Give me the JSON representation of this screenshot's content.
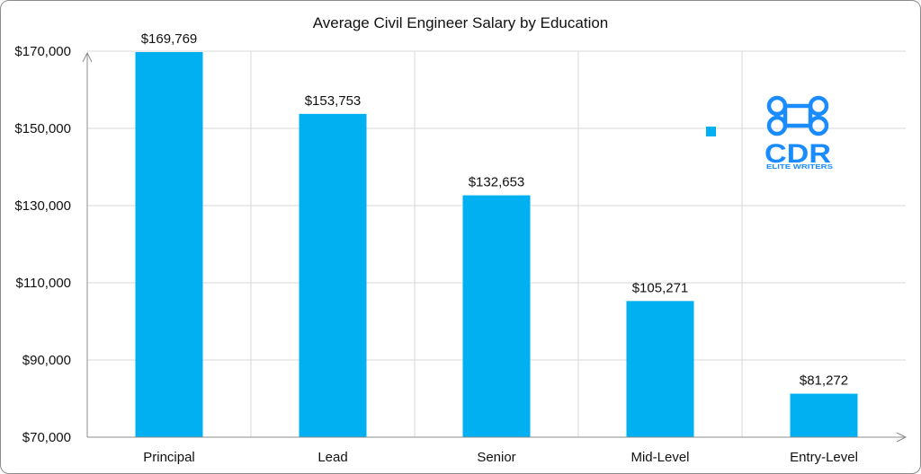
{
  "chart_data": {
    "type": "bar",
    "title": "Average Civil Engineer Salary by Education",
    "xlabel": "",
    "ylabel": "",
    "categories": [
      "Principal",
      "Lead",
      "Senior",
      "Mid-Level",
      "Entry-Level"
    ],
    "values": [
      169769,
      153753,
      132653,
      105271,
      81272
    ],
    "data_labels": [
      "$169,769",
      "$153,753",
      "$132,653",
      "$105,271",
      "$81,272"
    ],
    "ylim": [
      70000,
      170000
    ],
    "yticks": [
      70000,
      90000,
      110000,
      130000,
      150000,
      170000
    ],
    "ytick_labels": [
      "$70,000",
      "$90,000",
      "$110,000",
      "$130,000",
      "$150,000",
      "$170,000"
    ],
    "grid": true,
    "legend": "none",
    "bar_color": "#00b0f0",
    "grid_color": "#d9d9d9",
    "axis_color": "#8c8c8c"
  },
  "watermark": {
    "brand": "CDR",
    "tagline": "ELITE WRITERS",
    "color": "#1a8cff"
  }
}
